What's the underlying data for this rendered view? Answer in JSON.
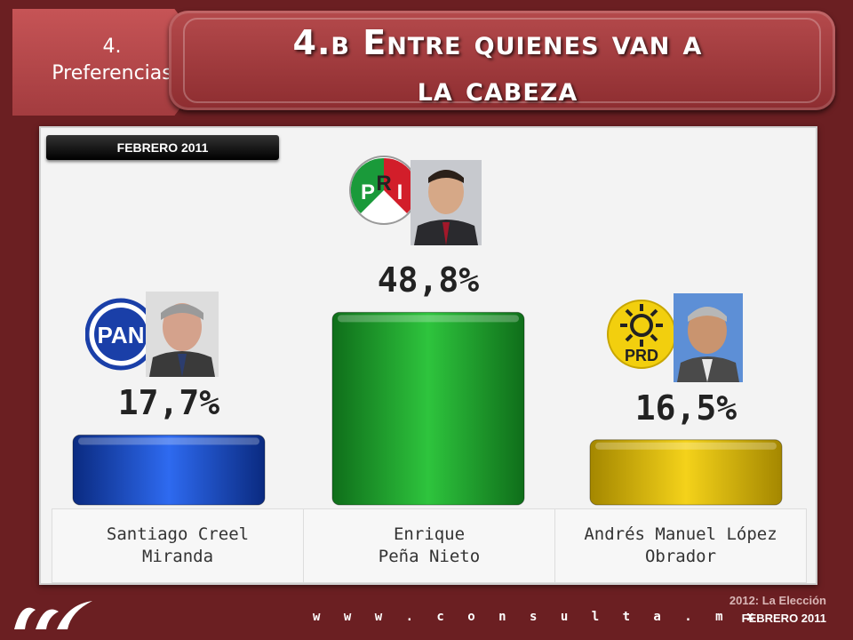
{
  "section": {
    "number": "4.",
    "label": "Preferencias"
  },
  "title": {
    "line1": "4.b Entre quienes van a",
    "line2": "la cabeza"
  },
  "date_label": "FEBRERO 2011",
  "chart_data": {
    "type": "bar",
    "categories": [
      "Santiago Creel Miranda",
      "Enrique Peña Nieto",
      "Andrés Manuel López Obrador"
    ],
    "values": [
      17.7,
      48.8,
      16.5
    ],
    "value_labels": [
      "17,7%",
      "48,8%",
      "16,5%"
    ],
    "parties": [
      "PAN",
      "PRI",
      "PRD"
    ],
    "colors": [
      "#1440b8",
      "#1aa52a",
      "#e3c30d"
    ],
    "ylim": [
      0,
      50
    ]
  },
  "candidates": [
    {
      "party": "PAN",
      "name_line1": "Santiago Creel",
      "name_line2": "Miranda"
    },
    {
      "party": "PRI",
      "name_line1": "Enrique",
      "name_line2": "Peña Nieto"
    },
    {
      "party": "PRD",
      "name_line1": "Andrés Manuel López",
      "name_line2": "Obrador"
    }
  ],
  "footer": {
    "url": "w w w . c o n s u l t a . m x",
    "brand_line1": "2012: La Elección",
    "brand_line2": "FEBRERO 2011"
  }
}
